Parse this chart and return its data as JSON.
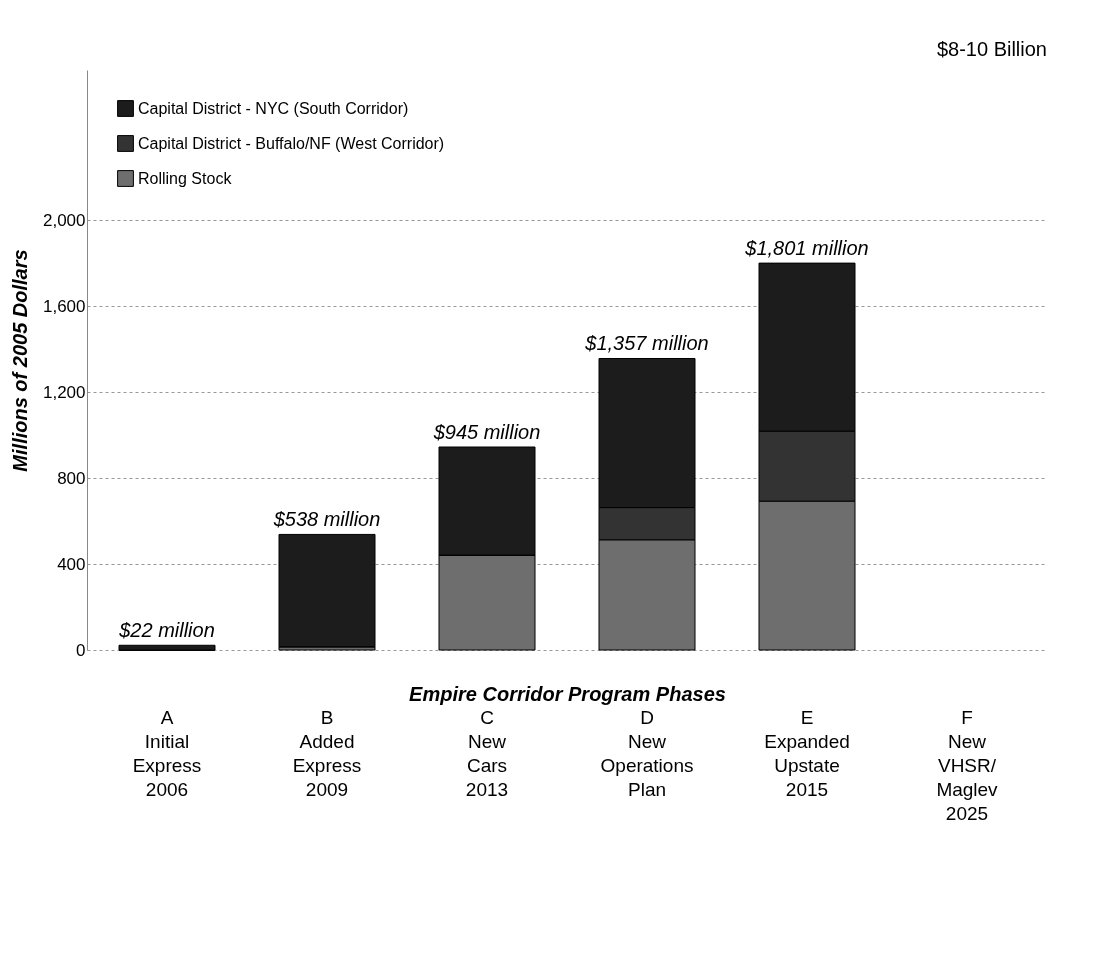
{
  "chart_data": {
    "type": "bar",
    "stacked": true,
    "xlabel": "Empire Corridor Program Phases",
    "ylabel": "Millions of 2005 Dollars",
    "categories": [
      "A\nInitial\nExpress\n2006",
      "B\nAdded\nExpress\n2009",
      "C\nNew\nCars\n2013",
      "D\nNew\nOperations\nPlan",
      "E\nExpanded\nUpstate\n2015",
      "F\nNew\nVHSR/\nMaglev\n2025"
    ],
    "series": [
      {
        "name": "Rolling Stock",
        "color": "#6e6e6e",
        "values": [
          0,
          15,
          442,
          513,
          693,
          null
        ]
      },
      {
        "name": "Capital District - Buffalo/NF (West Corridor)",
        "color": "#333333",
        "values": [
          0,
          0,
          0,
          150,
          326,
          null
        ]
      },
      {
        "name": "Capital District - NYC (South Corridor)",
        "color": "#1c1c1c",
        "values": [
          22,
          523,
          503,
          694,
          782,
          null
        ]
      }
    ],
    "totals": [
      "$22 million",
      "$538 million",
      "$945 million",
      "$1,357 million",
      "$1,801 million",
      null
    ],
    "annotations": [
      "$8-10 Billion"
    ],
    "ylim": [
      0,
      2700
    ],
    "yticks": [
      0,
      400,
      800,
      {
        "value": 1200,
        "label": "1,200"
      },
      {
        "value": 1600,
        "label": "1,600"
      },
      {
        "value": 2000,
        "label": "2,000"
      }
    ],
    "grid": "y",
    "legend": "top left"
  }
}
